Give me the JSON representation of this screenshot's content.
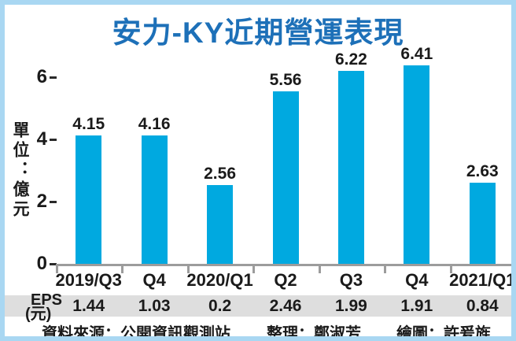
{
  "title": "安力-KY近期營運表現",
  "y_axis": {
    "unit_label": "單位：億元",
    "ticks": [
      6,
      4,
      2,
      0
    ]
  },
  "chart_data": {
    "type": "bar",
    "title": "安力-KY近期營運表現",
    "categories": [
      "2019/Q3",
      "Q4",
      "2020/Q1",
      "Q2",
      "Q3",
      "Q4",
      "2021/Q1"
    ],
    "values": [
      4.15,
      4.16,
      2.56,
      5.56,
      6.22,
      6.41,
      2.63
    ],
    "data_labels": [
      "4.15",
      "4.16",
      "2.56",
      "5.56",
      "6.22",
      "6.41",
      "2.63"
    ],
    "ylabel": "單位：億元",
    "ylim": [
      0,
      6.8
    ],
    "yticks": [
      0,
      2,
      4,
      6
    ],
    "grid": false,
    "legend": "none",
    "bar_color": "#00a9e0"
  },
  "eps_row": {
    "label_line1": "EPS",
    "label_line2": "(元)",
    "values": [
      "1.44",
      "1.03",
      "0.2",
      "2.46",
      "1.99",
      "1.91",
      "0.84"
    ]
  },
  "footer": {
    "source": "資料來源：公開資訊觀測站",
    "editor": "整理：鄭淑芳",
    "illustrator": "繪圖：許爰旌"
  },
  "colors": {
    "bar": "#00a9e0",
    "title_blue": "#1d70b8",
    "frame_border": "#a9d7f2",
    "eps_band": "#dedede",
    "axis_gray": "#9c9c9c"
  }
}
